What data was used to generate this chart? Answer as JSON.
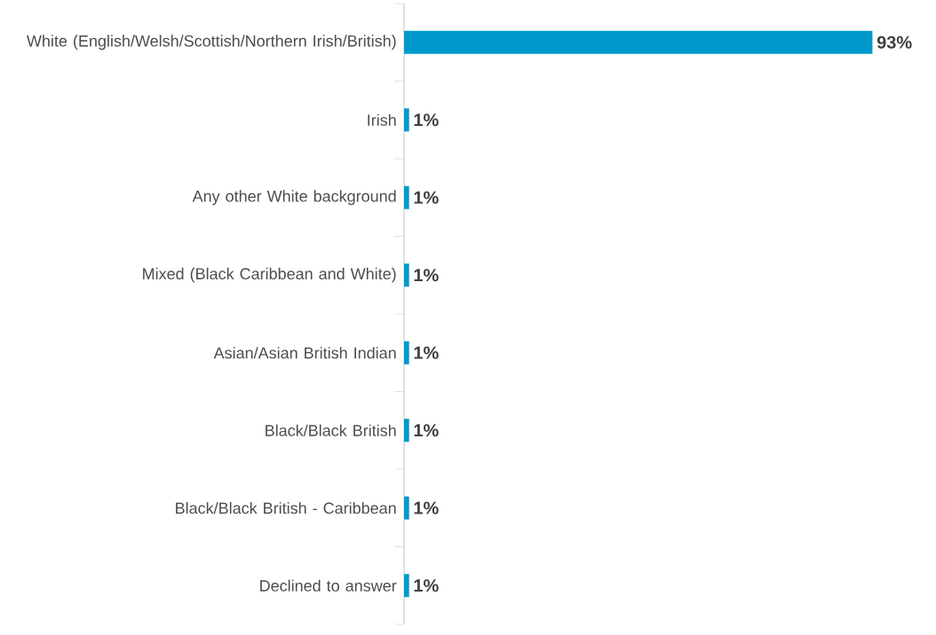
{
  "chart_data": {
    "type": "bar",
    "orientation": "horizontal",
    "categories": [
      "White (English/Welsh/Scottish/Northern Irish/British)",
      "Irish",
      "Any other White background",
      "Mixed (Black Caribbean and White)",
      "Asian/Asian British Indian",
      "Black/Black British",
      "Black/Black British - Caribbean",
      "Declined to answer"
    ],
    "values": [
      93,
      1,
      1,
      1,
      1,
      1,
      1,
      1
    ],
    "value_labels": [
      "93%",
      "1%",
      "1%",
      "1%",
      "1%",
      "1%",
      "1%",
      "1%"
    ],
    "color": "#0099cc"
  }
}
